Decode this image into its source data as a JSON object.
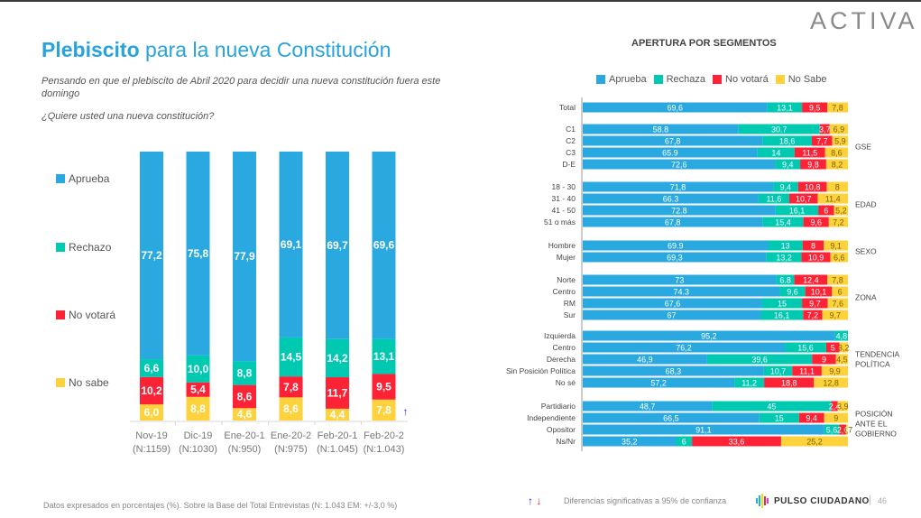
{
  "header": {
    "title_bold": "Plebiscito",
    "title_rest": " para la nueva Constitución",
    "subtitle": "Pensando en que el plebiscito de Abril 2020 para decidir una nueva constitución fuera este domingo",
    "question": "¿Quiere usted una nueva constitución?",
    "logo": "ACTIVA"
  },
  "colors": {
    "aprueba": "#29a9e0",
    "rechazo": "#00c9b1",
    "no_votara": "#fe2236",
    "no_sabe": "#fed23d",
    "arrow_up": "#1a1aff",
    "arrow_down": "#ff1a1a"
  },
  "chart_data": [
    {
      "type": "bar",
      "stacked": true,
      "orientation": "vertical",
      "title": "Plebiscito para la nueva Constitución",
      "categories": [
        "Nov-19",
        "Dic-19",
        "Ene-20-1",
        "Ene-20-2",
        "Feb-20-1",
        "Feb-20-2"
      ],
      "sample_sizes": [
        "(N:1159)",
        "(N:1030)",
        "(N:950)",
        "(N:975)",
        "(N:1.045)",
        "(N:1.043)"
      ],
      "series": [
        {
          "name": "No sabe",
          "key": "no_sabe",
          "values": [
            6.0,
            8.8,
            4.6,
            8.6,
            4.4,
            7.8
          ],
          "labels": [
            "6,0",
            "8,8",
            "4,6",
            "8,6",
            "4,4",
            "7,8"
          ]
        },
        {
          "name": "No votará",
          "key": "no_votara",
          "values": [
            10.2,
            5.4,
            8.6,
            7.8,
            11.7,
            9.5
          ],
          "labels": [
            "10,2",
            "5,4",
            "8,6",
            "7,8",
            "11,7",
            "9,5"
          ]
        },
        {
          "name": "Rechazo",
          "key": "rechazo",
          "values": [
            6.6,
            10.0,
            8.8,
            14.5,
            14.2,
            13.1
          ],
          "labels": [
            "6,6",
            "10,0",
            "8,8",
            "14,5",
            "14,2",
            "13,1"
          ]
        },
        {
          "name": "Aprueba",
          "key": "aprueba",
          "values": [
            77.2,
            75.8,
            77.9,
            69.1,
            69.7,
            69.6
          ],
          "labels": [
            "77,2",
            "75,8",
            "77,9",
            "69,1",
            "69,7",
            "69,6"
          ]
        }
      ],
      "legend": [
        "Aprueba",
        "Rechazo",
        "No votará",
        "No sabe"
      ],
      "legend_position": "left",
      "annotations": [
        {
          "category": "Feb-20-2",
          "series": "No sabe",
          "symbol": "↑",
          "meaning": "significant increase"
        }
      ],
      "ylim": [
        0,
        100
      ]
    },
    {
      "type": "bar",
      "stacked": true,
      "orientation": "horizontal",
      "title": "APERTURA POR SEGMENTOS",
      "legend": [
        "Aprueba",
        "Rechaza",
        "No votará",
        "No Sabe"
      ],
      "legend_position": "top",
      "xlim": [
        0,
        100
      ],
      "groups": [
        {
          "name": "",
          "rows": [
            {
              "label": "Total",
              "values": [
                69.6,
                13.1,
                9.5,
                7.8
              ],
              "labels": [
                "69,6",
                "13,1",
                "9,5",
                "7,8"
              ]
            }
          ]
        },
        {
          "name": "GSE",
          "rows": [
            {
              "label": "C1",
              "values": [
                58.8,
                30.7,
                3.7,
                6.9
              ],
              "labels": [
                "58.8",
                "30.7",
                "3,7",
                "6,9"
              ]
            },
            {
              "label": "C2",
              "values": [
                67.8,
                18.6,
                7.7,
                5.9
              ],
              "labels": [
                "67,8",
                "18,6",
                "7,7",
                "5,9"
              ]
            },
            {
              "label": "C3",
              "values": [
                65.9,
                14,
                11.5,
                8.6
              ],
              "labels": [
                "65.9",
                "14",
                "11,5",
                "8,6"
              ]
            },
            {
              "label": "D-E",
              "values": [
                72.6,
                9.4,
                9.8,
                8.2
              ],
              "labels": [
                "72,6",
                "9,4",
                "9,8",
                "8,2"
              ]
            }
          ]
        },
        {
          "name": "EDAD",
          "rows": [
            {
              "label": "18 - 30",
              "values": [
                71.8,
                9.4,
                10.8,
                8
              ],
              "labels": [
                "71,8",
                "9,4",
                "10,8",
                "8"
              ]
            },
            {
              "label": "31 - 40",
              "values": [
                66.3,
                11.6,
                10.7,
                11.4
              ],
              "labels": [
                "66.3",
                "11,6",
                "10,7",
                "11,4"
              ]
            },
            {
              "label": "41 - 50",
              "values": [
                72.8,
                16.1,
                6,
                5.2
              ],
              "labels": [
                "72.8",
                "16,1",
                "6",
                "5,2"
              ]
            },
            {
              "label": "51 o más",
              "values": [
                67.8,
                15.4,
                9.6,
                7.2
              ],
              "labels": [
                "67,8",
                "15,4",
                "9,6",
                "7,2"
              ]
            }
          ]
        },
        {
          "name": "SEXO",
          "rows": [
            {
              "label": "Hombre",
              "values": [
                69.9,
                13,
                8,
                9.1
              ],
              "labels": [
                "69.9",
                "13",
                "8",
                "9,1"
              ]
            },
            {
              "label": "Mujer",
              "values": [
                69.3,
                13.2,
                10.9,
                6.6
              ],
              "labels": [
                "69,3",
                "13,2",
                "10,9",
                "6,6"
              ]
            }
          ]
        },
        {
          "name": "ZONA",
          "rows": [
            {
              "label": "Norte",
              "values": [
                73,
                6.8,
                12.4,
                7.8
              ],
              "labels": [
                "73",
                "6.8",
                "12,4",
                "7,8"
              ]
            },
            {
              "label": "Centro",
              "values": [
                74.3,
                9.6,
                10.1,
                6
              ],
              "labels": [
                "74.3",
                "9,6",
                "10,1",
                "6"
              ]
            },
            {
              "label": "RM",
              "values": [
                67.6,
                15,
                9.7,
                7.6
              ],
              "labels": [
                "67,6",
                "15",
                "9,7",
                "7,6"
              ]
            },
            {
              "label": "Sur",
              "values": [
                67,
                16.1,
                7.2,
                9.7
              ],
              "labels": [
                "67",
                "16,1",
                "7,2",
                "9,7"
              ]
            }
          ]
        },
        {
          "name": "TENDENCIA POLÍTICA",
          "rows": [
            {
              "label": "Izquierda",
              "values": [
                95.2,
                4.8,
                0,
                0
              ],
              "labels": [
                "95,2",
                "4,8",
                "",
                ""
              ]
            },
            {
              "label": "Centro",
              "values": [
                76.2,
                15.6,
                5,
                3.2
              ],
              "labels": [
                "76,2",
                "15,6",
                "5",
                "3,2"
              ]
            },
            {
              "label": "Derecha",
              "values": [
                46.9,
                39.6,
                9,
                4.5
              ],
              "labels": [
                "46,9",
                "39,6",
                "9",
                "4,5"
              ]
            },
            {
              "label": "Sin Posición Política",
              "values": [
                68.3,
                10.7,
                11.1,
                9.9
              ],
              "labels": [
                "68,3",
                "10,7",
                "11,1",
                "9,9"
              ]
            },
            {
              "label": "No sé",
              "values": [
                57.2,
                11.2,
                18.8,
                12.8
              ],
              "labels": [
                "57,2",
                "11,2",
                "18,8",
                "12,8"
              ]
            }
          ]
        },
        {
          "name": "POSICIÓN ANTE EL GOBIERNO",
          "rows": [
            {
              "label": "Partidiario",
              "values": [
                48.7,
                45,
                2.4,
                3.9
              ],
              "labels": [
                "48,7",
                "45",
                "2,4",
                "3,9"
              ]
            },
            {
              "label": "Independiente",
              "values": [
                66.5,
                15,
                9.4,
                9
              ],
              "labels": [
                "66,5",
                "15",
                "9,4",
                "9"
              ]
            },
            {
              "label": "Opositor",
              "values": [
                91.1,
                5.6,
                2.6,
                0.7
              ],
              "labels": [
                "91,1",
                "5,6",
                "2,6",
                "0,7"
              ]
            },
            {
              "label": "Ns/Nr",
              "values": [
                35.2,
                6,
                33.6,
                25.2
              ],
              "labels": [
                "35,2",
                "6",
                "33,6",
                "25,2"
              ]
            }
          ]
        }
      ]
    }
  ],
  "left_legend": [
    "Aprueba",
    "Rechazo",
    "No votará",
    "No sabe"
  ],
  "right_legend": [
    "Aprueba",
    "Rechaza",
    "No votará",
    "No Sabe"
  ],
  "segments_title": "APERTURA POR SEGMENTOS",
  "group_labels": {
    "gse": "GSE",
    "edad": "EDAD",
    "sexo": "SEXO",
    "zona": "ZONA",
    "tendencia_1": "TENDENCIA",
    "tendencia_2": "POLÍTICA",
    "gobierno_1": "POSICIÓN",
    "gobierno_2": "ANTE EL",
    "gobierno_3": "GOBIERNO"
  },
  "footer": {
    "note": "Datos expresados en porcentajes (%). Sobre la Base del Total Entrevistas (N: 1.043  EM: +/-3,0 %)",
    "arrow_up": "↑",
    "arrow_down": "↓",
    "significance": "Diferencias  significativas a 95% de confianza",
    "brand": "PULSO CIUDADANO",
    "separator": "|",
    "page": "46"
  }
}
